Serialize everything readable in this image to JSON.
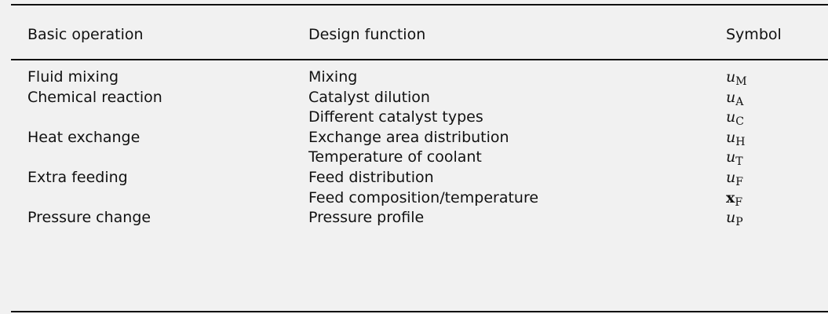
{
  "table": {
    "headers": [
      "Basic operation",
      "Design function",
      "Symbol"
    ],
    "rows": [
      {
        "operation": "Fluid mixing",
        "function": "Mixing",
        "symbol": {
          "base": "u",
          "sub": "M",
          "bold": false
        }
      },
      {
        "operation": "Chemical reaction",
        "function": "Catalyst dilution",
        "symbol": {
          "base": "u",
          "sub": "A",
          "bold": false
        }
      },
      {
        "operation": "",
        "function": "Different catalyst types",
        "symbol": {
          "base": "u",
          "sub": "C",
          "bold": false
        }
      },
      {
        "operation": "Heat exchange",
        "function": "Exchange area distribution",
        "symbol": {
          "base": "u",
          "sub": "H",
          "bold": false
        }
      },
      {
        "operation": "",
        "function": "Temperature of coolant",
        "symbol": {
          "base": "u",
          "sub": "T",
          "bold": false
        }
      },
      {
        "operation": "Extra feeding",
        "function": "Feed distribution",
        "symbol": {
          "base": "u",
          "sub": "F",
          "bold": false
        }
      },
      {
        "operation": "",
        "function": "Feed composition/temperature",
        "symbol": {
          "base": "x",
          "sub": "F",
          "bold": true
        }
      },
      {
        "operation": "Pressure change",
        "function": "Pressure profile",
        "symbol": {
          "base": "u",
          "sub": "P",
          "bold": false
        }
      }
    ]
  }
}
